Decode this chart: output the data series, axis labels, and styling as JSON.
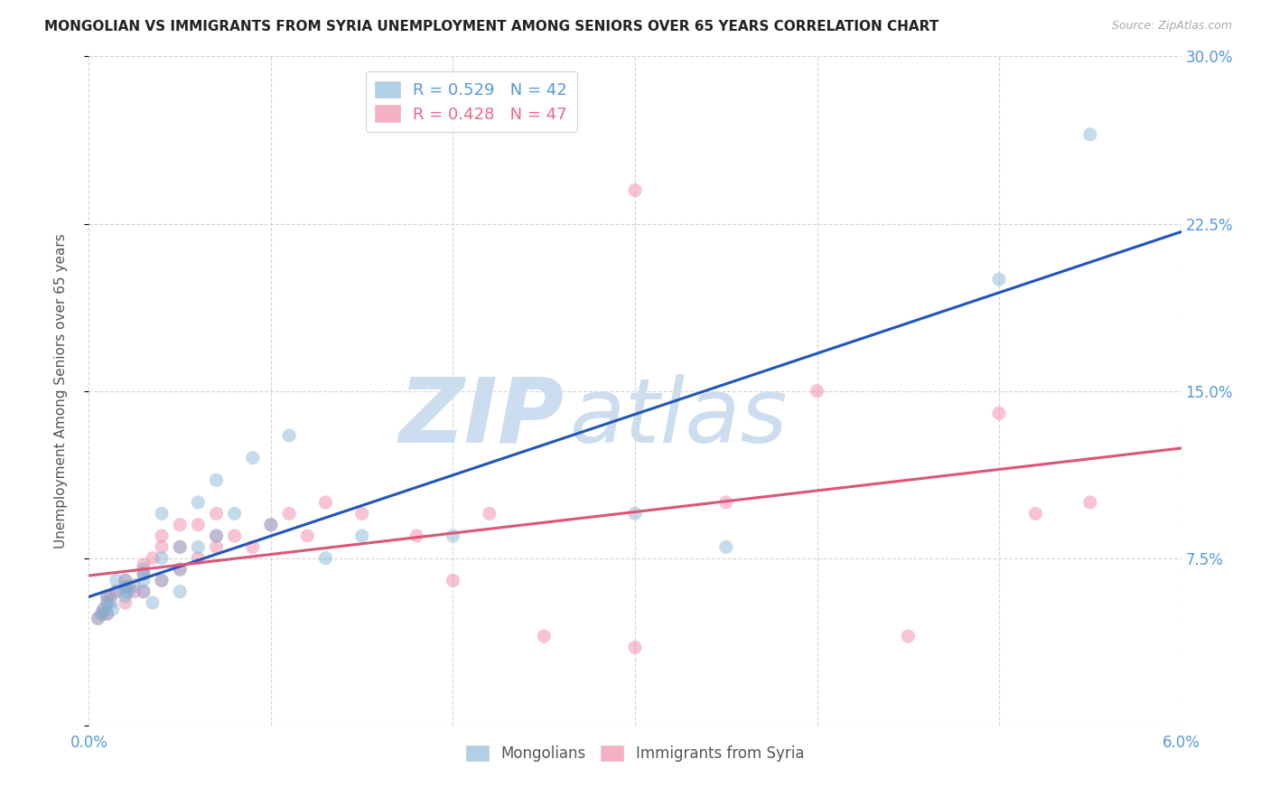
{
  "title": "MONGOLIAN VS IMMIGRANTS FROM SYRIA UNEMPLOYMENT AMONG SENIORS OVER 65 YEARS CORRELATION CHART",
  "source": "Source: ZipAtlas.com",
  "ylabel": "Unemployment Among Seniors over 65 years",
  "xlim": [
    0.0,
    0.06
  ],
  "ylim": [
    0.0,
    0.3
  ],
  "xticks": [
    0.0,
    0.01,
    0.02,
    0.03,
    0.04,
    0.05,
    0.06
  ],
  "xticklabels": [
    "0.0%",
    "",
    "",
    "",
    "",
    "",
    "6.0%"
  ],
  "yticks_right": [
    0.0,
    0.075,
    0.15,
    0.225,
    0.3
  ],
  "yticklabels_right": [
    "",
    "7.5%",
    "15.0%",
    "22.5%",
    "30.0%"
  ],
  "blue_color": "#7eb0d4",
  "pink_color": "#f07c9e",
  "blue_line_color": "#2255bb",
  "pink_line_color": "#dd5577",
  "watermark_zip_color": "#ccddf0",
  "watermark_atlas_color": "#ccddf0",
  "background_color": "#ffffff",
  "grid_color": "#cccccc",
  "axis_tick_color": "#5599dd",
  "title_color": "#222222",
  "ylabel_color": "#555555",
  "source_color": "#aaaaaa",
  "legend_text_blue": "#5599dd",
  "legend_text_pink": "#ee6688",
  "mongolians_x": [
    0.0005,
    0.0007,
    0.0008,
    0.001,
    0.001,
    0.001,
    0.0012,
    0.0013,
    0.0015,
    0.0015,
    0.002,
    0.002,
    0.002,
    0.002,
    0.0022,
    0.0025,
    0.003,
    0.003,
    0.003,
    0.003,
    0.0035,
    0.004,
    0.004,
    0.004,
    0.005,
    0.005,
    0.005,
    0.006,
    0.006,
    0.007,
    0.007,
    0.008,
    0.009,
    0.01,
    0.011,
    0.013,
    0.015,
    0.02,
    0.03,
    0.035,
    0.05,
    0.055
  ],
  "mongolians_y": [
    0.048,
    0.05,
    0.052,
    0.05,
    0.055,
    0.058,
    0.055,
    0.052,
    0.06,
    0.065,
    0.058,
    0.06,
    0.062,
    0.065,
    0.06,
    0.063,
    0.06,
    0.065,
    0.068,
    0.07,
    0.055,
    0.065,
    0.075,
    0.095,
    0.07,
    0.08,
    0.06,
    0.08,
    0.1,
    0.085,
    0.11,
    0.095,
    0.12,
    0.09,
    0.13,
    0.075,
    0.085,
    0.085,
    0.095,
    0.08,
    0.2,
    0.265
  ],
  "syria_x": [
    0.0005,
    0.0007,
    0.0008,
    0.001,
    0.001,
    0.001,
    0.0012,
    0.0015,
    0.002,
    0.002,
    0.002,
    0.0022,
    0.0025,
    0.003,
    0.003,
    0.003,
    0.0035,
    0.004,
    0.004,
    0.004,
    0.005,
    0.005,
    0.005,
    0.006,
    0.006,
    0.007,
    0.007,
    0.007,
    0.008,
    0.009,
    0.01,
    0.011,
    0.012,
    0.013,
    0.015,
    0.018,
    0.02,
    0.022,
    0.025,
    0.03,
    0.035,
    0.04,
    0.045,
    0.05,
    0.03,
    0.052,
    0.055
  ],
  "syria_y": [
    0.048,
    0.05,
    0.052,
    0.05,
    0.055,
    0.058,
    0.058,
    0.06,
    0.055,
    0.062,
    0.065,
    0.062,
    0.06,
    0.06,
    0.068,
    0.072,
    0.075,
    0.065,
    0.08,
    0.085,
    0.07,
    0.08,
    0.09,
    0.075,
    0.09,
    0.08,
    0.085,
    0.095,
    0.085,
    0.08,
    0.09,
    0.095,
    0.085,
    0.1,
    0.095,
    0.085,
    0.065,
    0.095,
    0.04,
    0.035,
    0.1,
    0.15,
    0.04,
    0.14,
    0.24,
    0.095,
    0.1
  ]
}
